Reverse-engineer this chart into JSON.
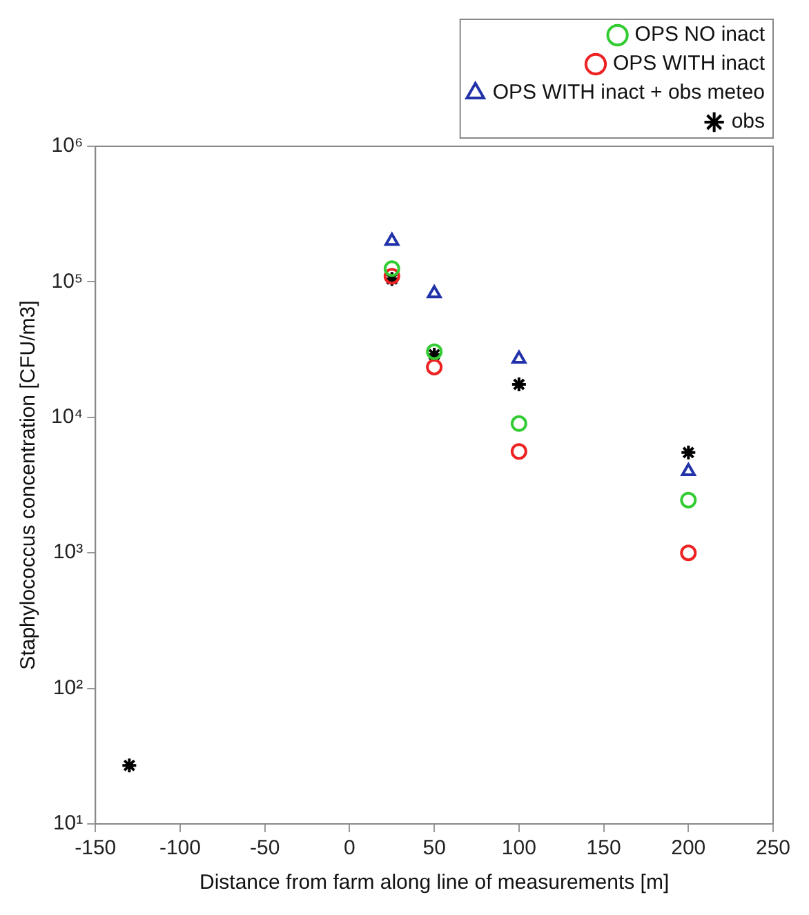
{
  "chart_data": {
    "type": "scatter",
    "xlabel": "Distance from farm along line of measurements [m]",
    "ylabel": "Staphylococcus concentration [CFU/m3]",
    "log": "y",
    "legend": "top right",
    "grid": false,
    "xlim": [
      -150,
      250
    ],
    "xticks": [
      -150,
      -100,
      -50,
      0,
      50,
      100,
      150,
      200,
      250
    ],
    "ylim": [
      10,
      1000000
    ],
    "yticks": [
      {
        "value": 10,
        "label": "10¹"
      },
      {
        "value": 100,
        "label": "10²"
      },
      {
        "value": 1000,
        "label": "10³"
      },
      {
        "value": 10000,
        "label": "10⁴"
      },
      {
        "value": 100000,
        "label": "10⁵"
      },
      {
        "value": 1000000,
        "label": "10⁶"
      }
    ],
    "series": [
      {
        "name": "OPS NO inact",
        "color": "#33cc33",
        "marker": "circle",
        "x": [
          25,
          50,
          100,
          200
        ],
        "values": [
          125000,
          30500,
          9000,
          2450
        ]
      },
      {
        "name": "OPS WITH inact",
        "color": "#ee2222",
        "marker": "circle",
        "x": [
          25,
          50,
          100,
          200
        ],
        "values": [
          110000,
          23500,
          5600,
          1000
        ]
      },
      {
        "name": "OPS WITH inact + obs meteo",
        "color": "#2233aa",
        "marker": "triangle",
        "x": [
          25,
          50,
          100,
          200
        ],
        "values": [
          200000,
          82000,
          27000,
          4000
        ]
      },
      {
        "name": "obs",
        "color": "#000000",
        "marker": "cross",
        "x": [
          -130,
          25,
          50,
          100,
          200
        ],
        "values": [
          27,
          105000,
          29000,
          17500,
          5500
        ]
      }
    ]
  }
}
